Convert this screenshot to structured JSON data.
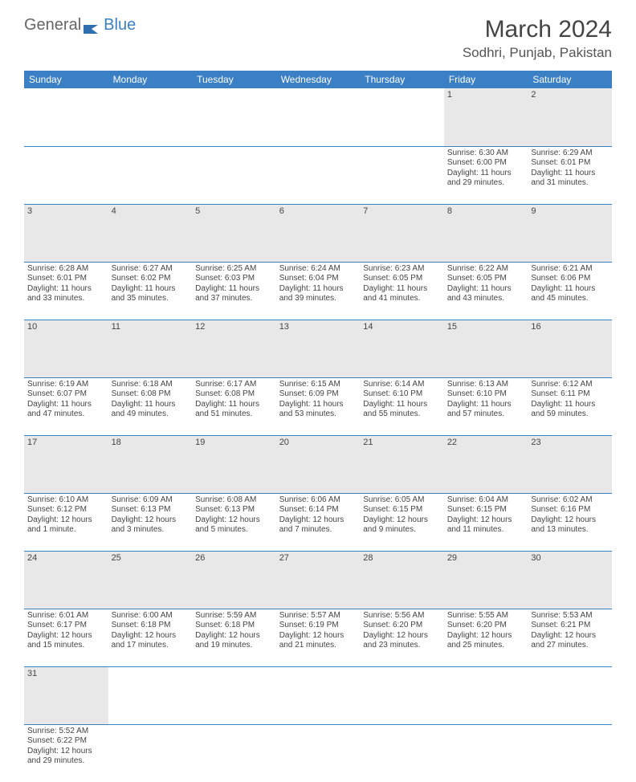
{
  "logo": {
    "part1": "General",
    "part2": "Blue"
  },
  "title": "March 2024",
  "location": "Sodhri, Punjab, Pakistan",
  "colors": {
    "header_bg": "#3b7fc4",
    "header_text": "#ffffff",
    "daynum_bg": "#e8e8e8",
    "border": "#3b7fc4",
    "text": "#444444"
  },
  "day_headers": [
    "Sunday",
    "Monday",
    "Tuesday",
    "Wednesday",
    "Thursday",
    "Friday",
    "Saturday"
  ],
  "weeks": [
    {
      "nums": [
        "",
        "",
        "",
        "",
        "",
        "1",
        "2"
      ],
      "cells": [
        null,
        null,
        null,
        null,
        null,
        {
          "sunrise": "Sunrise: 6:30 AM",
          "sunset": "Sunset: 6:00 PM",
          "daylight": "Daylight: 11 hours and 29 minutes."
        },
        {
          "sunrise": "Sunrise: 6:29 AM",
          "sunset": "Sunset: 6:01 PM",
          "daylight": "Daylight: 11 hours and 31 minutes."
        }
      ]
    },
    {
      "nums": [
        "3",
        "4",
        "5",
        "6",
        "7",
        "8",
        "9"
      ],
      "cells": [
        {
          "sunrise": "Sunrise: 6:28 AM",
          "sunset": "Sunset: 6:01 PM",
          "daylight": "Daylight: 11 hours and 33 minutes."
        },
        {
          "sunrise": "Sunrise: 6:27 AM",
          "sunset": "Sunset: 6:02 PM",
          "daylight": "Daylight: 11 hours and 35 minutes."
        },
        {
          "sunrise": "Sunrise: 6:25 AM",
          "sunset": "Sunset: 6:03 PM",
          "daylight": "Daylight: 11 hours and 37 minutes."
        },
        {
          "sunrise": "Sunrise: 6:24 AM",
          "sunset": "Sunset: 6:04 PM",
          "daylight": "Daylight: 11 hours and 39 minutes."
        },
        {
          "sunrise": "Sunrise: 6:23 AM",
          "sunset": "Sunset: 6:05 PM",
          "daylight": "Daylight: 11 hours and 41 minutes."
        },
        {
          "sunrise": "Sunrise: 6:22 AM",
          "sunset": "Sunset: 6:05 PM",
          "daylight": "Daylight: 11 hours and 43 minutes."
        },
        {
          "sunrise": "Sunrise: 6:21 AM",
          "sunset": "Sunset: 6:06 PM",
          "daylight": "Daylight: 11 hours and 45 minutes."
        }
      ]
    },
    {
      "nums": [
        "10",
        "11",
        "12",
        "13",
        "14",
        "15",
        "16"
      ],
      "cells": [
        {
          "sunrise": "Sunrise: 6:19 AM",
          "sunset": "Sunset: 6:07 PM",
          "daylight": "Daylight: 11 hours and 47 minutes."
        },
        {
          "sunrise": "Sunrise: 6:18 AM",
          "sunset": "Sunset: 6:08 PM",
          "daylight": "Daylight: 11 hours and 49 minutes."
        },
        {
          "sunrise": "Sunrise: 6:17 AM",
          "sunset": "Sunset: 6:08 PM",
          "daylight": "Daylight: 11 hours and 51 minutes."
        },
        {
          "sunrise": "Sunrise: 6:15 AM",
          "sunset": "Sunset: 6:09 PM",
          "daylight": "Daylight: 11 hours and 53 minutes."
        },
        {
          "sunrise": "Sunrise: 6:14 AM",
          "sunset": "Sunset: 6:10 PM",
          "daylight": "Daylight: 11 hours and 55 minutes."
        },
        {
          "sunrise": "Sunrise: 6:13 AM",
          "sunset": "Sunset: 6:10 PM",
          "daylight": "Daylight: 11 hours and 57 minutes."
        },
        {
          "sunrise": "Sunrise: 6:12 AM",
          "sunset": "Sunset: 6:11 PM",
          "daylight": "Daylight: 11 hours and 59 minutes."
        }
      ]
    },
    {
      "nums": [
        "17",
        "18",
        "19",
        "20",
        "21",
        "22",
        "23"
      ],
      "cells": [
        {
          "sunrise": "Sunrise: 6:10 AM",
          "sunset": "Sunset: 6:12 PM",
          "daylight": "Daylight: 12 hours and 1 minute."
        },
        {
          "sunrise": "Sunrise: 6:09 AM",
          "sunset": "Sunset: 6:13 PM",
          "daylight": "Daylight: 12 hours and 3 minutes."
        },
        {
          "sunrise": "Sunrise: 6:08 AM",
          "sunset": "Sunset: 6:13 PM",
          "daylight": "Daylight: 12 hours and 5 minutes."
        },
        {
          "sunrise": "Sunrise: 6:06 AM",
          "sunset": "Sunset: 6:14 PM",
          "daylight": "Daylight: 12 hours and 7 minutes."
        },
        {
          "sunrise": "Sunrise: 6:05 AM",
          "sunset": "Sunset: 6:15 PM",
          "daylight": "Daylight: 12 hours and 9 minutes."
        },
        {
          "sunrise": "Sunrise: 6:04 AM",
          "sunset": "Sunset: 6:15 PM",
          "daylight": "Daylight: 12 hours and 11 minutes."
        },
        {
          "sunrise": "Sunrise: 6:02 AM",
          "sunset": "Sunset: 6:16 PM",
          "daylight": "Daylight: 12 hours and 13 minutes."
        }
      ]
    },
    {
      "nums": [
        "24",
        "25",
        "26",
        "27",
        "28",
        "29",
        "30"
      ],
      "cells": [
        {
          "sunrise": "Sunrise: 6:01 AM",
          "sunset": "Sunset: 6:17 PM",
          "daylight": "Daylight: 12 hours and 15 minutes."
        },
        {
          "sunrise": "Sunrise: 6:00 AM",
          "sunset": "Sunset: 6:18 PM",
          "daylight": "Daylight: 12 hours and 17 minutes."
        },
        {
          "sunrise": "Sunrise: 5:59 AM",
          "sunset": "Sunset: 6:18 PM",
          "daylight": "Daylight: 12 hours and 19 minutes."
        },
        {
          "sunrise": "Sunrise: 5:57 AM",
          "sunset": "Sunset: 6:19 PM",
          "daylight": "Daylight: 12 hours and 21 minutes."
        },
        {
          "sunrise": "Sunrise: 5:56 AM",
          "sunset": "Sunset: 6:20 PM",
          "daylight": "Daylight: 12 hours and 23 minutes."
        },
        {
          "sunrise": "Sunrise: 5:55 AM",
          "sunset": "Sunset: 6:20 PM",
          "daylight": "Daylight: 12 hours and 25 minutes."
        },
        {
          "sunrise": "Sunrise: 5:53 AM",
          "sunset": "Sunset: 6:21 PM",
          "daylight": "Daylight: 12 hours and 27 minutes."
        }
      ]
    },
    {
      "nums": [
        "31",
        "",
        "",
        "",
        "",
        "",
        ""
      ],
      "cells": [
        {
          "sunrise": "Sunrise: 5:52 AM",
          "sunset": "Sunset: 6:22 PM",
          "daylight": "Daylight: 12 hours and 29 minutes."
        },
        null,
        null,
        null,
        null,
        null,
        null
      ]
    }
  ]
}
